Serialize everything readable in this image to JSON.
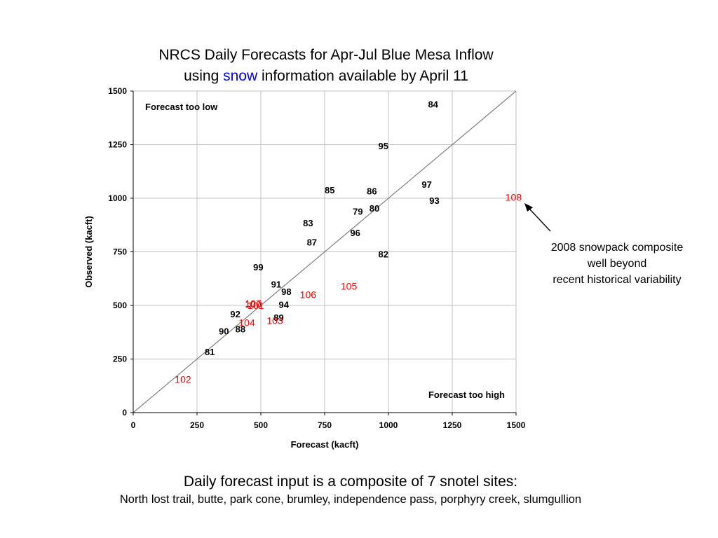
{
  "title_line1": "NRCS Daily Forecasts for Apr-Jul Blue Mesa Inflow",
  "title_line2_pre": "using ",
  "title_line2_highlight": "snow",
  "title_line2_post": " information available by April 11",
  "annotation_lines": [
    "2008 snowpack composite",
    "well beyond",
    "recent historical variability"
  ],
  "footer_line1": "Daily forecast input is a composite of 7 snotel sites:",
  "footer_line2": "North lost trail, butte, park cone, brumley, independence pass, porphyry creek, slumgullion",
  "colors": {
    "historical": "#000000",
    "recent": "#ff0000",
    "highlight": "#0000ee",
    "grid": "#c0c0c0",
    "one_to_one": "#808080"
  },
  "chart_data": {
    "type": "scatter",
    "xlabel": "Forecast (kacft)",
    "ylabel": "Observed (kacft)",
    "xlim": [
      0,
      1500
    ],
    "ylim": [
      0,
      1500
    ],
    "xticks": [
      "0",
      "250",
      "500",
      "750",
      "1000",
      "1250",
      "1500"
    ],
    "yticks": [
      "0",
      "250",
      "500",
      "750",
      "1000",
      "1250",
      "1500"
    ],
    "grid": true,
    "reference_line": "y = x",
    "region_labels": {
      "upper_left": "Forecast too low",
      "lower_right": "Forecast too high"
    },
    "series": [
      {
        "color": "historical",
        "points": [
          {
            "label": "79",
            "x": 880,
            "y": 940
          },
          {
            "label": "80",
            "x": 945,
            "y": 955
          },
          {
            "label": "81",
            "x": 300,
            "y": 285
          },
          {
            "label": "82",
            "x": 980,
            "y": 740
          },
          {
            "label": "83",
            "x": 685,
            "y": 885
          },
          {
            "label": "84",
            "x": 1175,
            "y": 1440
          },
          {
            "label": "85",
            "x": 770,
            "y": 1040
          },
          {
            "label": "86",
            "x": 935,
            "y": 1035
          },
          {
            "label": "87",
            "x": 700,
            "y": 795
          },
          {
            "label": "88",
            "x": 420,
            "y": 390
          },
          {
            "label": "89",
            "x": 570,
            "y": 445
          },
          {
            "label": "90",
            "x": 355,
            "y": 380
          },
          {
            "label": "91",
            "x": 560,
            "y": 600
          },
          {
            "label": "92",
            "x": 400,
            "y": 460
          },
          {
            "label": "93",
            "x": 1180,
            "y": 990
          },
          {
            "label": "94",
            "x": 590,
            "y": 505
          },
          {
            "label": "95",
            "x": 980,
            "y": 1245
          },
          {
            "label": "96",
            "x": 870,
            "y": 840
          },
          {
            "label": "97",
            "x": 1150,
            "y": 1065
          },
          {
            "label": "98",
            "x": 600,
            "y": 565
          },
          {
            "label": "99",
            "x": 490,
            "y": 680
          }
        ]
      },
      {
        "color": "recent",
        "points": [
          {
            "label": "100",
            "x": 470,
            "y": 505
          },
          {
            "label": "101",
            "x": 480,
            "y": 500
          },
          {
            "label": "102",
            "x": 195,
            "y": 155
          },
          {
            "label": "103",
            "x": 555,
            "y": 430
          },
          {
            "label": "104",
            "x": 445,
            "y": 420
          },
          {
            "label": "105",
            "x": 845,
            "y": 590
          },
          {
            "label": "106",
            "x": 685,
            "y": 550
          },
          {
            "label": "107",
            "x": 470,
            "y": 510
          },
          {
            "label": "108",
            "x": 1490,
            "y": 1005
          }
        ]
      }
    ]
  }
}
